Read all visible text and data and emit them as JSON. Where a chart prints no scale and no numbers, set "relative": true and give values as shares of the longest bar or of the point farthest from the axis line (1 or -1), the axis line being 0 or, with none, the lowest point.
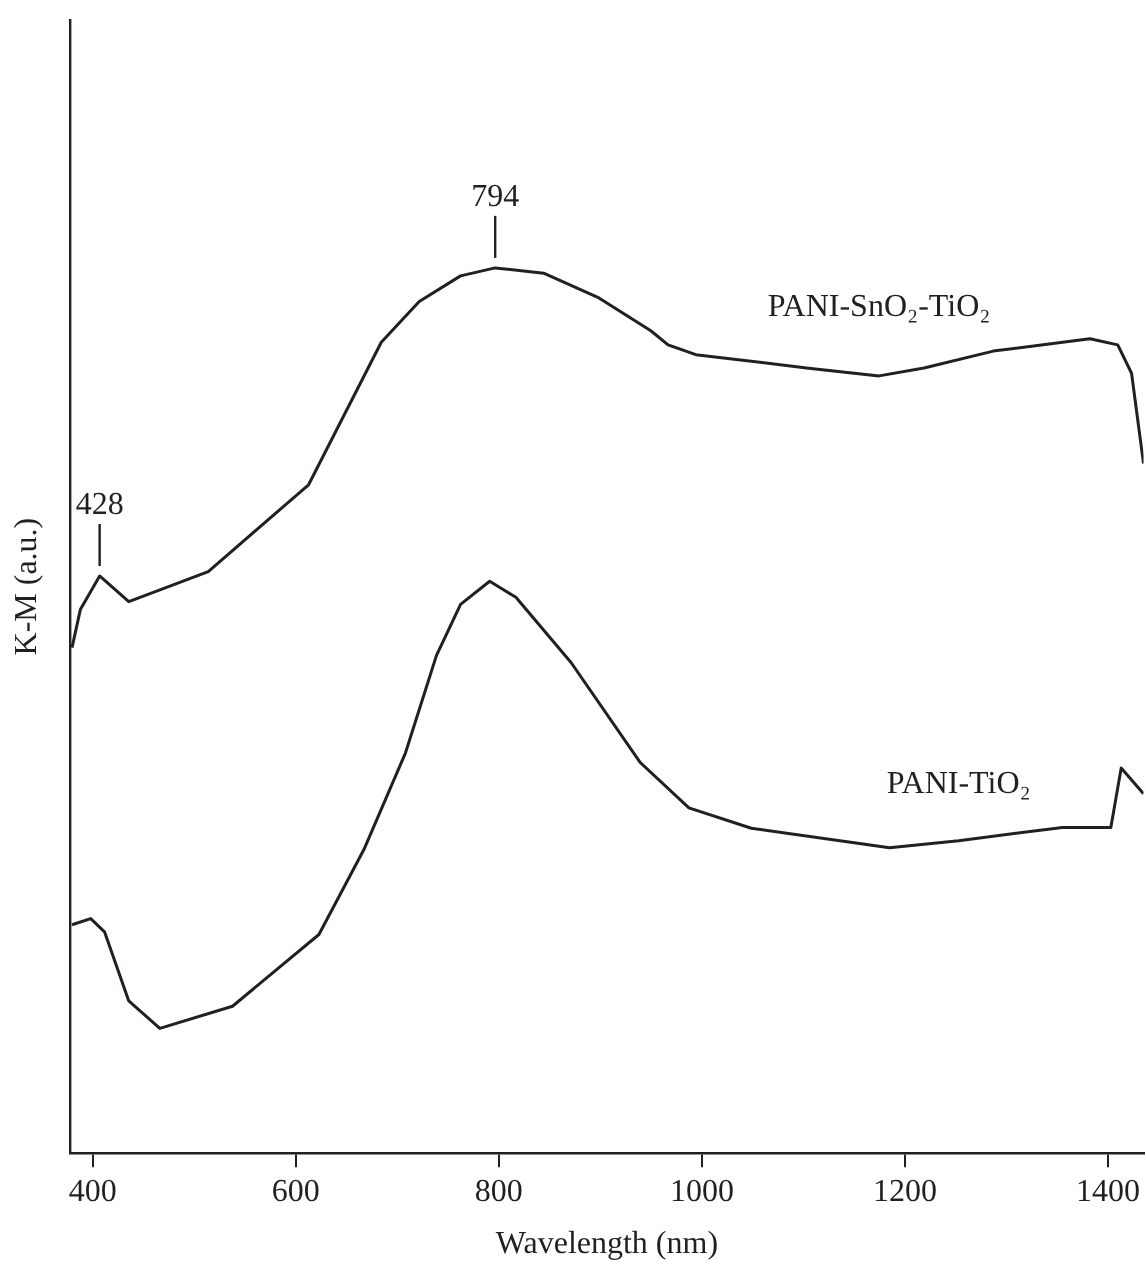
{
  "chart_data": {
    "type": "line",
    "xlabel": "Wavelength (nm)",
    "ylabel": "K-M (a.u.)",
    "relative": true,
    "xlim": [
      378,
      1435
    ],
    "xticks": [
      400,
      600,
      800,
      1000,
      1200,
      1400
    ],
    "grid": false,
    "legend": false,
    "marker": "none",
    "line_style": "solid",
    "series": [
      {
        "name": "PANI-SnO₂-TiO₂",
        "color": "#231f20",
        "x": [
          379.6,
          387.8,
          406.8,
          435.5,
          513.8,
          612.6,
          684.2,
          721.6,
          762.3,
          796.4,
          844.1,
          898.6,
          949.7,
          966.7,
          994,
          1103,
          1174.5,
          1218.8,
          1287,
          1382.2,
          1409.6,
          1423.2,
          1435
        ],
        "values": [
          0.571,
          0.614,
          0.652,
          0.623,
          0.657,
          0.755,
          0.916,
          0.962,
          0.991,
          1,
          0.994,
          0.966,
          0.929,
          0.913,
          0.902,
          0.887,
          0.878,
          0.887,
          0.906,
          0.92,
          0.913,
          0.881,
          0.779
        ]
      },
      {
        "name": "PANI-TiO₂",
        "color": "#231f20",
        "x": [
          379.6,
          398,
          411.6,
          435.5,
          466.1,
          537.7,
          622.8,
          667.1,
          708,
          738.5,
          762.3,
          791,
          816.8,
          871.3,
          939.5,
          987.2,
          1048.7,
          1184.8,
          1252.9,
          1355.1,
          1402.8,
          1413,
          1435
        ],
        "values": [
          0.258,
          0.265,
          0.25,
          0.172,
          0.141,
          0.166,
          0.247,
          0.343,
          0.452,
          0.562,
          0.62,
          0.646,
          0.628,
          0.554,
          0.441,
          0.39,
          0.367,
          0.345,
          0.353,
          0.368,
          0.368,
          0.435,
          0.406
        ]
      }
    ],
    "annotations": [
      {
        "text": "428",
        "x": 406.8,
        "y": 0.652
      },
      {
        "text": "794",
        "x": 796.4,
        "y": 1
      }
    ]
  }
}
